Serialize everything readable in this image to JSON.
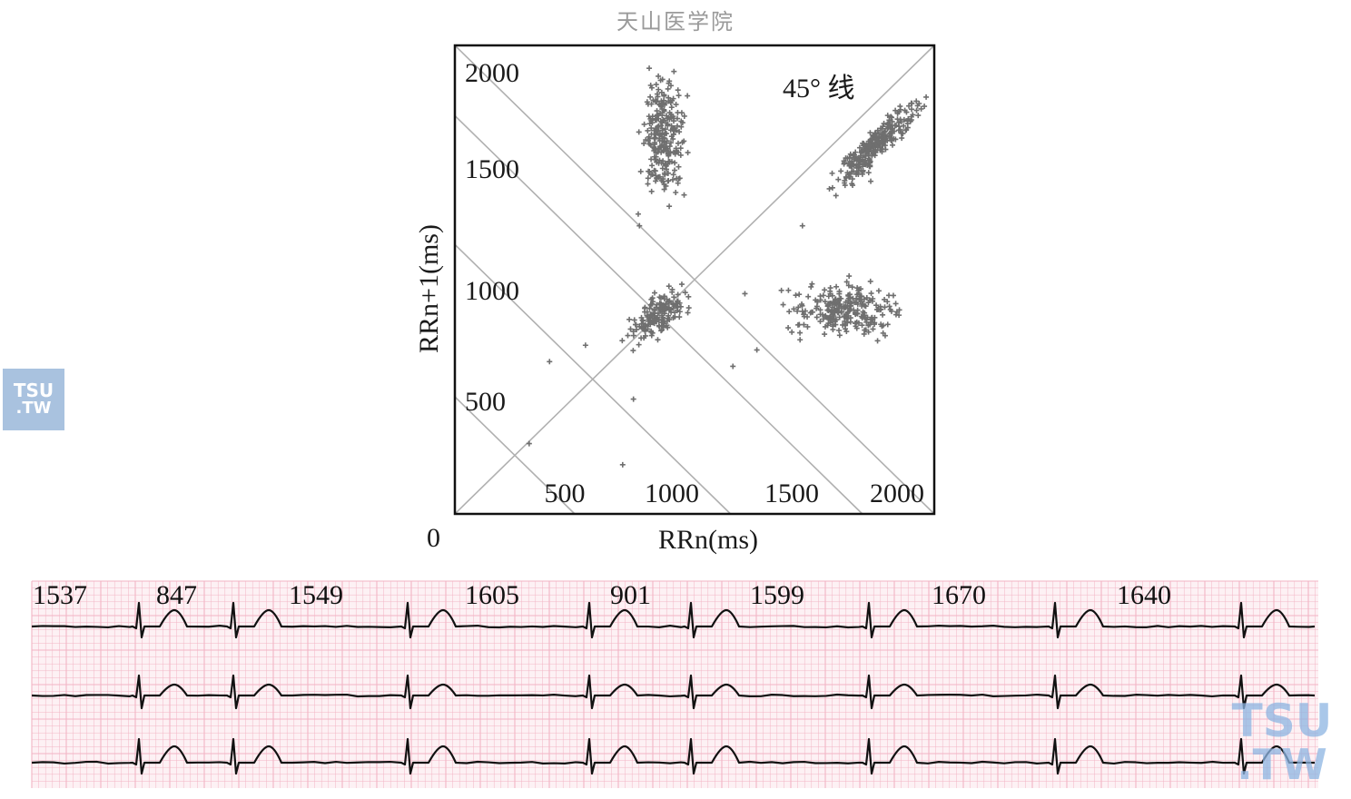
{
  "watermark": "天山医学院",
  "logo": {
    "line1": "TSU",
    "line2": ".TW"
  },
  "chart_data": {
    "type": "scatter",
    "title": "",
    "xlabel": "RRn(ms)",
    "ylabel": "RRn+1(ms)",
    "xlim": [
      0,
      2000
    ],
    "ylim": [
      0,
      2000
    ],
    "origin_label": "0",
    "x_ticks": [
      "500",
      "1000",
      "1500",
      "2000"
    ],
    "y_ticks": [
      "500",
      "1000",
      "1500",
      "2000"
    ],
    "annotation": "45° 线",
    "reference_lines": [
      "45-degree identity line",
      "anti-diagonal lines"
    ],
    "grid": false,
    "marker": "+",
    "clusters": [
      {
        "center": [
          850,
          850
        ],
        "spread": [
          70,
          70
        ],
        "orientation": "diagonal",
        "count": 160
      },
      {
        "center": [
          870,
          1600
        ],
        "spread": [
          45,
          130
        ],
        "orientation": "vertical",
        "count": 260
      },
      {
        "center": [
          1760,
          1580
        ],
        "spread": [
          110,
          60
        ],
        "orientation": "diagonal",
        "count": 280
      },
      {
        "center": [
          1630,
          870
        ],
        "spread": [
          120,
          55
        ],
        "orientation": "horizontal",
        "count": 260
      }
    ],
    "outliers": [
      [
        310,
        300
      ],
      [
        395,
        650
      ],
      [
        545,
        720
      ],
      [
        700,
        210
      ],
      [
        745,
        490
      ],
      [
        765,
        1280
      ],
      [
        770,
        1230
      ],
      [
        1160,
        630
      ],
      [
        1210,
        940
      ],
      [
        1260,
        700
      ],
      [
        1450,
        1230
      ],
      [
        1735,
        1420
      ]
    ]
  },
  "ecg": {
    "rr_labels": [
      "1537",
      "847",
      "1549",
      "1605",
      "901",
      "1599",
      "1670",
      "1640"
    ],
    "grid_color": "#f2b4c4",
    "trace_color": "#111111",
    "leads": 3
  }
}
